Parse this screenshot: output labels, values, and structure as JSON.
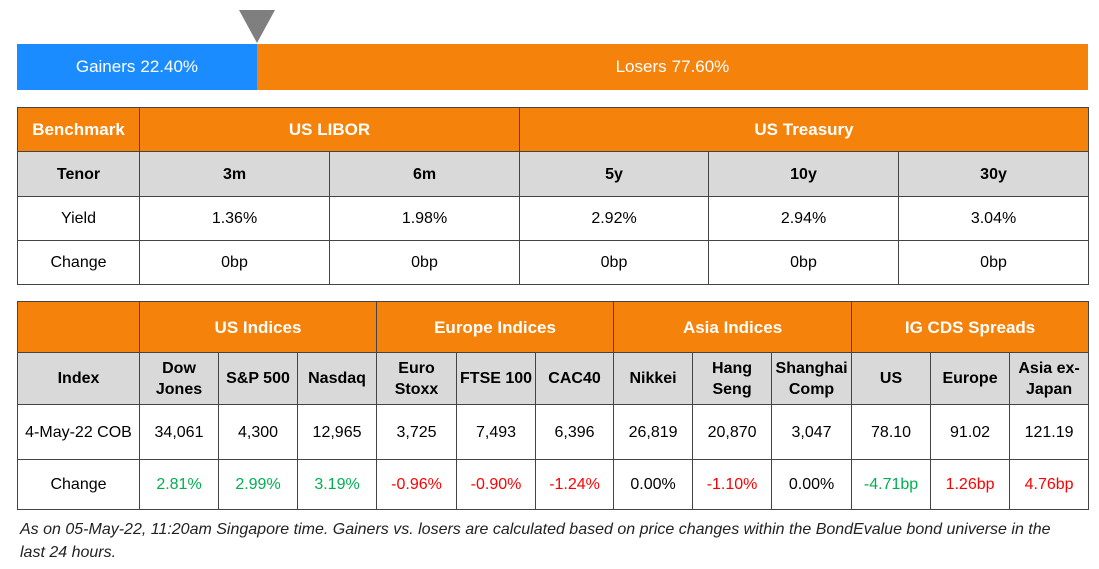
{
  "breadth": {
    "gainers": {
      "label": "Gainers",
      "value": 22.4,
      "value_label": "22.40%",
      "color": "#1a8cff"
    },
    "losers": {
      "label": "Losers",
      "value": 77.6,
      "value_label": "77.60%",
      "color": "#f5820a"
    }
  },
  "rates_table": {
    "group_headers": [
      {
        "text": "Benchmark",
        "span": 1
      },
      {
        "text": "US LIBOR",
        "span": 2
      },
      {
        "text": "US Treasury",
        "span": 3
      }
    ],
    "columns": [
      [
        "Tenor"
      ],
      [
        "3m"
      ],
      [
        "6m"
      ],
      [
        "5y"
      ],
      [
        "10y"
      ],
      [
        "30y"
      ]
    ],
    "rows": [
      [
        "Yield",
        "1.36%",
        "1.98%",
        "2.92%",
        "2.94%",
        "3.04%"
      ],
      [
        "Change",
        "0bp",
        "0bp",
        "0bp",
        "0bp",
        "0bp"
      ]
    ]
  },
  "indices_table": {
    "group_headers": [
      {
        "text": "US Indices",
        "span": 3
      },
      {
        "text": "Europe Indices",
        "span": 3
      },
      {
        "text": "Asia Indices",
        "span": 3
      },
      {
        "text": "IG CDS Spreads",
        "span": 3
      }
    ],
    "columns": [
      [
        "Index"
      ],
      [
        "Dow",
        "Jones"
      ],
      [
        "S&P 500"
      ],
      [
        "Nasdaq"
      ],
      [
        "Euro",
        "Stoxx"
      ],
      [
        "FTSE 100"
      ],
      [
        "CAC40"
      ],
      [
        "Nikkei"
      ],
      [
        "Hang",
        "Seng"
      ],
      [
        "Shanghai",
        "Comp"
      ],
      [
        "US"
      ],
      [
        "Europe"
      ],
      [
        "Asia ex-",
        "Japan"
      ]
    ],
    "rows": [
      [
        "4-May-22 COB",
        "34,061",
        "4,300",
        "12,965",
        "3,725",
        "7,493",
        "6,396",
        "26,819",
        "20,870",
        "3,047",
        "78.10",
        "91.02",
        "121.19"
      ],
      [
        "Change",
        "2.81%",
        "2.99%",
        "3.19%",
        "-0.96%",
        "-0.90%",
        "-1.24%",
        "0.00%",
        "-1.10%",
        "0.00%",
        "-4.71bp",
        "1.26bp",
        "4.76bp"
      ]
    ],
    "change_colors": [
      "#000000",
      "#00b050",
      "#00b050",
      "#00b050",
      "#ff0000",
      "#ff0000",
      "#ff0000",
      "#000000",
      "#ff0000",
      "#000000",
      "#00b050",
      "#ff0000",
      "#ff0000"
    ]
  },
  "footnote": "As on 05-May-22, 11:20am Singapore time. Gainers vs. losers are calculated based on price changes within the BondEvalue bond universe in the last 24 hours."
}
